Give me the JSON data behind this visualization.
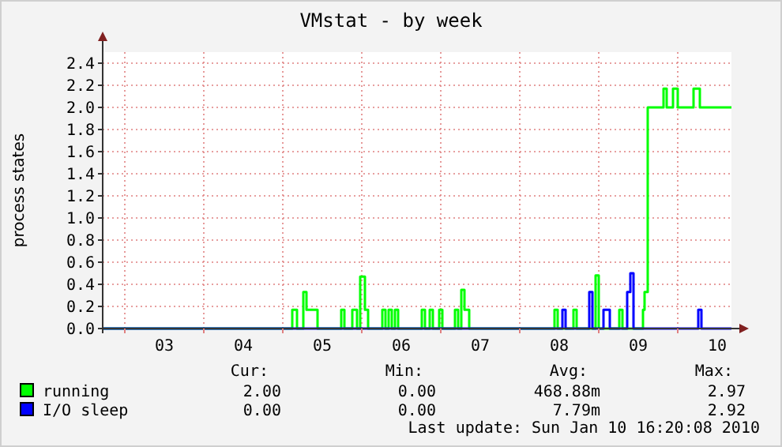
{
  "chart_data": {
    "type": "step",
    "title": "VMstat - by week",
    "ylabel": "process states",
    "xlim": [
      2.72,
      10.68
    ],
    "xticks": [
      {
        "value": 3,
        "label": null
      },
      {
        "value": 3.5,
        "label": "03"
      },
      {
        "value": 4,
        "label": null
      },
      {
        "value": 4.5,
        "label": "04"
      },
      {
        "value": 5,
        "label": null
      },
      {
        "value": 5.5,
        "label": "05"
      },
      {
        "value": 6,
        "label": null
      },
      {
        "value": 6.5,
        "label": "06"
      },
      {
        "value": 7,
        "label": null
      },
      {
        "value": 7.5,
        "label": "07"
      },
      {
        "value": 8,
        "label": null
      },
      {
        "value": 8.5,
        "label": "08"
      },
      {
        "value": 9,
        "label": null
      },
      {
        "value": 9.5,
        "label": "09"
      },
      {
        "value": 10,
        "label": null
      },
      {
        "value": 10.5,
        "label": "10"
      }
    ],
    "ylim": [
      0,
      2.5
    ],
    "yticks": [
      {
        "value": 0,
        "label": "0.0"
      },
      {
        "value": 0.2,
        "label": "0.2"
      },
      {
        "value": 0.4,
        "label": "0.4"
      },
      {
        "value": 0.6,
        "label": "0.6"
      },
      {
        "value": 0.8,
        "label": "0.8"
      },
      {
        "value": 1,
        "label": "1.0"
      },
      {
        "value": 1.2,
        "label": "1.2"
      },
      {
        "value": 1.4,
        "label": "1.4"
      },
      {
        "value": 1.6,
        "label": "1.6"
      },
      {
        "value": 1.8,
        "label": "1.8"
      },
      {
        "value": 2,
        "label": "2.0"
      },
      {
        "value": 2.2,
        "label": "2.2"
      },
      {
        "value": 2.4,
        "label": "2.4"
      }
    ],
    "grid": true,
    "legend": "bottom left",
    "series": [
      {
        "name": "running",
        "color": "#00ff00",
        "x": [
          2.72,
          5.12,
          5.18,
          5.26,
          5.3,
          5.44,
          5.74,
          5.78,
          5.88,
          5.94,
          5.98,
          6.04,
          6.08,
          6.26,
          6.3,
          6.34,
          6.38,
          6.42,
          6.46,
          6.76,
          6.8,
          6.86,
          6.9,
          6.98,
          7.02,
          7.18,
          7.22,
          7.26,
          7.3,
          7.36,
          8.44,
          8.48,
          8.68,
          8.72,
          8.96,
          9.0,
          9.26,
          9.3,
          9.56,
          9.58,
          9.62,
          9.82,
          9.86,
          9.94,
          10.0,
          10.2,
          10.28,
          10.68
        ],
        "values": [
          0,
          0.17,
          0,
          0.33,
          0.17,
          0,
          0.17,
          0,
          0.17,
          0,
          0.47,
          0.17,
          0,
          0.17,
          0,
          0.17,
          0,
          0.17,
          0,
          0.17,
          0,
          0.17,
          0,
          0.17,
          0,
          0.17,
          0,
          0.35,
          0.17,
          0,
          0.17,
          0,
          0.17,
          0,
          0.48,
          0,
          0.17,
          0,
          0.17,
          0.33,
          2.0,
          2.17,
          2.0,
          2.17,
          2.0,
          2.17,
          2.0,
          2.0
        ]
      },
      {
        "name": "I/O sleep",
        "color": "#0000ff",
        "x": [
          2.72,
          8.54,
          8.58,
          8.88,
          8.92,
          9.06,
          9.14,
          9.36,
          9.4,
          9.44,
          10.26,
          10.3,
          10.68
        ],
        "values": [
          0,
          0.17,
          0,
          0.33,
          0,
          0.17,
          0,
          0.33,
          0.5,
          0,
          0.17,
          0,
          0
        ]
      }
    ],
    "annotations": [
      "Cur:",
      "Min:",
      "Avg:",
      "Max:",
      "2.00",
      "0.00",
      "468.88m",
      "2.97",
      "0.00",
      "0.00",
      "7.79m",
      "2.92",
      "Last update: Sun Jan 10 16:20:08 2010"
    ]
  }
}
